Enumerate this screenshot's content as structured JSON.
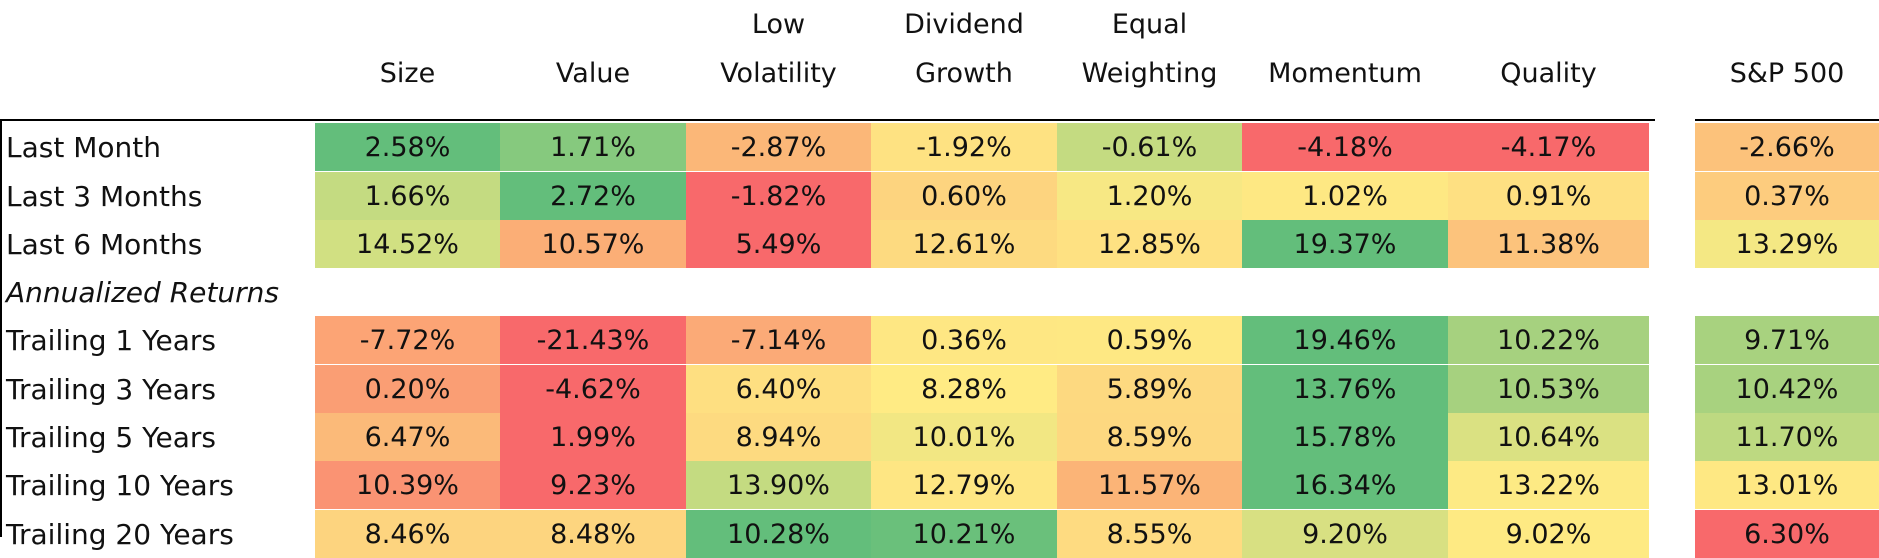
{
  "chart_data": {
    "type": "table",
    "columns": [
      {
        "label": "Size"
      },
      {
        "label": "Value"
      },
      {
        "label": "Low Volatility"
      },
      {
        "label": "Dividend Growth"
      },
      {
        "label": "Equal Weighting"
      },
      {
        "label": "Momentum"
      },
      {
        "label": "Quality"
      },
      {
        "label": "S&P 500"
      }
    ],
    "header_lines": [
      [
        "Size"
      ],
      [
        "Value"
      ],
      [
        "Low",
        "Volatility"
      ],
      [
        "Dividend",
        "Growth"
      ],
      [
        "Equal",
        "Weighting"
      ],
      [
        "Momentum"
      ],
      [
        "Quality"
      ],
      [
        "S&P 500"
      ]
    ],
    "rows": [
      {
        "label": "Last Month",
        "cells": [
          {
            "text": "2.58%",
            "color": "#63BE7B"
          },
          {
            "text": "1.71%",
            "color": "#86C97E"
          },
          {
            "text": "-2.87%",
            "color": "#FBB778"
          },
          {
            "text": "-1.92%",
            "color": "#FEE282"
          },
          {
            "text": "-0.61%",
            "color": "#C4DB81"
          },
          {
            "text": "-4.18%",
            "color": "#F8696B"
          },
          {
            "text": "-4.17%",
            "color": "#F8696B"
          },
          {
            "text": "-2.66%",
            "color": "#FCC27B"
          }
        ]
      },
      {
        "label": "Last 3 Months",
        "cells": [
          {
            "text": "1.66%",
            "color": "#C4DB81"
          },
          {
            "text": "2.72%",
            "color": "#63BE7B"
          },
          {
            "text": "-1.82%",
            "color": "#F8696B"
          },
          {
            "text": "0.60%",
            "color": "#FDD47F"
          },
          {
            "text": "1.20%",
            "color": "#F7E884"
          },
          {
            "text": "1.02%",
            "color": "#FEE883"
          },
          {
            "text": "0.91%",
            "color": "#FEE082"
          },
          {
            "text": "0.37%",
            "color": "#FDCC7E"
          }
        ]
      },
      {
        "label": "Last 6 Months",
        "cells": [
          {
            "text": "14.52%",
            "color": "#D1E082"
          },
          {
            "text": "10.57%",
            "color": "#FBAE76"
          },
          {
            "text": "5.49%",
            "color": "#F8696B"
          },
          {
            "text": "12.61%",
            "color": "#FDDA80"
          },
          {
            "text": "12.85%",
            "color": "#FEE182"
          },
          {
            "text": "19.37%",
            "color": "#63BE7B"
          },
          {
            "text": "11.38%",
            "color": "#FCC37C"
          },
          {
            "text": "13.29%",
            "color": "#F4E884"
          }
        ]
      },
      {
        "label": "Annualized Returns",
        "section": true
      },
      {
        "label": "Trailing 1 Years",
        "cells": [
          {
            "text": "-7.72%",
            "color": "#FCA475"
          },
          {
            "text": "-21.43%",
            "color": "#F8696B"
          },
          {
            "text": "-7.14%",
            "color": "#FBAA77"
          },
          {
            "text": "0.36%",
            "color": "#FEE783"
          },
          {
            "text": "0.59%",
            "color": "#FEE883"
          },
          {
            "text": "19.46%",
            "color": "#63BE7B"
          },
          {
            "text": "10.22%",
            "color": "#A6D17F"
          },
          {
            "text": "9.71%",
            "color": "#A8D27F"
          }
        ]
      },
      {
        "label": "Trailing 3 Years",
        "cells": [
          {
            "text": "0.20%",
            "color": "#FA9E74"
          },
          {
            "text": "-4.62%",
            "color": "#F8696B"
          },
          {
            "text": "6.40%",
            "color": "#FEDF81"
          },
          {
            "text": "8.28%",
            "color": "#FFEB84"
          },
          {
            "text": "5.89%",
            "color": "#FDD980"
          },
          {
            "text": "13.76%",
            "color": "#63BE7B"
          },
          {
            "text": "10.53%",
            "color": "#A6D17F"
          },
          {
            "text": "10.42%",
            "color": "#A8D27F"
          }
        ]
      },
      {
        "label": "Trailing 5 Years",
        "cells": [
          {
            "text": "6.47%",
            "color": "#FBBA79"
          },
          {
            "text": "1.99%",
            "color": "#F8696B"
          },
          {
            "text": "8.94%",
            "color": "#FDDA80"
          },
          {
            "text": "10.01%",
            "color": "#F2E783"
          },
          {
            "text": "8.59%",
            "color": "#FDD880"
          },
          {
            "text": "15.78%",
            "color": "#63BE7B"
          },
          {
            "text": "10.64%",
            "color": "#DAE182"
          },
          {
            "text": "11.70%",
            "color": "#BDD981"
          }
        ]
      },
      {
        "label": "Trailing 10 Years",
        "cells": [
          {
            "text": "10.39%",
            "color": "#FA9373"
          },
          {
            "text": "9.23%",
            "color": "#F8696B"
          },
          {
            "text": "13.90%",
            "color": "#C4DB81"
          },
          {
            "text": "12.79%",
            "color": "#FEE683"
          },
          {
            "text": "11.57%",
            "color": "#FBB477"
          },
          {
            "text": "16.34%",
            "color": "#63BE7B"
          },
          {
            "text": "13.22%",
            "color": "#FDEA84"
          },
          {
            "text": "13.01%",
            "color": "#FEE883"
          }
        ]
      },
      {
        "label": "Trailing 20 Years",
        "cells": [
          {
            "text": "8.46%",
            "color": "#FDD47F"
          },
          {
            "text": "8.48%",
            "color": "#FDD57F"
          },
          {
            "text": "10.28%",
            "color": "#63BE7B"
          },
          {
            "text": "10.21%",
            "color": "#6AC07B"
          },
          {
            "text": "8.55%",
            "color": "#FEDB81"
          },
          {
            "text": "9.20%",
            "color": "#D8E082"
          },
          {
            "text": "9.02%",
            "color": "#FEEA83"
          },
          {
            "text": "6.30%",
            "color": "#F8696B"
          }
        ]
      }
    ]
  }
}
